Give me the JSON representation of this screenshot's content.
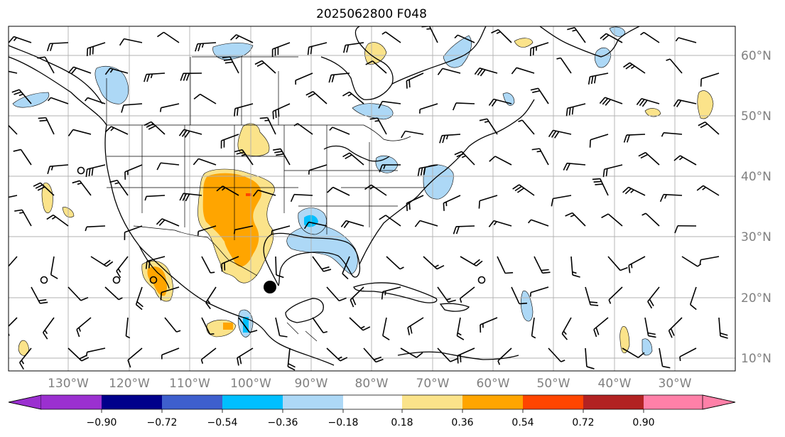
{
  "title": "2025062800 F048",
  "map": {
    "lon_range": [
      -140,
      -18
    ],
    "lat_range": [
      8,
      64
    ],
    "lon_ticks": [
      "130°W",
      "120°W",
      "110°W",
      "100°W",
      "90°W",
      "80°W",
      "70°W",
      "60°W",
      "50°W",
      "40°W",
      "30°W"
    ],
    "lat_ticks": [
      "60°N",
      "50°N",
      "40°N",
      "30°N",
      "20°N",
      "10°N"
    ],
    "grid": true,
    "storm_marker": "filled-circle"
  },
  "colorbar": {
    "ticks": [
      "−0.90",
      "−0.72",
      "−0.54",
      "−0.36",
      "−0.18",
      "0.18",
      "0.36",
      "0.54",
      "0.72",
      "0.90"
    ],
    "colors": {
      "under": "#9b30d0",
      "c1": "#00008b",
      "c2": "#3e5fcd",
      "c3": "#00bfff",
      "c4": "#add8f6",
      "c5": "#ffffff",
      "c6": "#fbe38a",
      "c7": "#ffa500",
      "c8": "#ff4500",
      "c9": "#b22222",
      "over": "#ff80a8"
    },
    "extend": "both"
  }
}
